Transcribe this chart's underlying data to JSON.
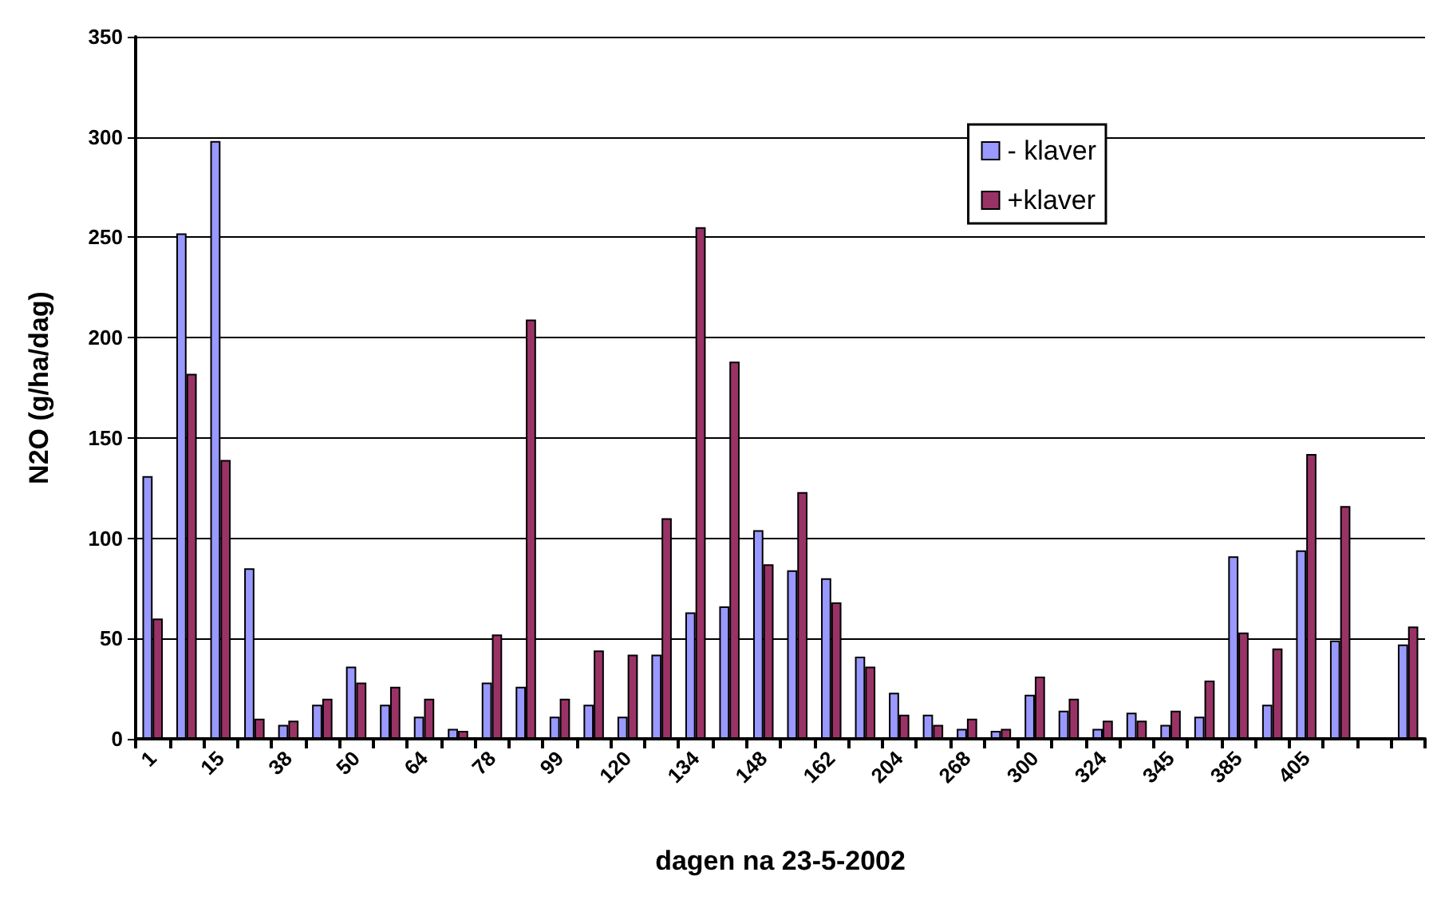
{
  "chart_data": {
    "type": "bar",
    "xlabel": "dagen na 23-5-2002",
    "ylabel": "N2O (g/ha/dag)",
    "categories": [
      "1",
      null,
      "15",
      null,
      "38",
      null,
      "50",
      null,
      "64",
      null,
      "78",
      null,
      "99",
      null,
      "120",
      null,
      "134",
      null,
      "148",
      null,
      "162",
      null,
      "204",
      null,
      "268",
      null,
      "300",
      null,
      "324",
      null,
      "345",
      null,
      "385",
      null,
      "405",
      null,
      null,
      null
    ],
    "series": [
      {
        "name": "- klaver",
        "color": "#9999ff",
        "values": [
          131,
          252,
          298,
          85,
          7,
          17,
          36,
          17,
          11,
          5,
          28,
          26,
          11,
          17,
          11,
          42,
          63,
          66,
          104,
          84,
          80,
          41,
          23,
          12,
          5,
          4,
          22,
          14,
          5,
          13,
          7,
          11,
          91,
          17,
          94,
          49,
          null,
          47
        ]
      },
      {
        "name": "+klaver",
        "color": "#993366",
        "values": [
          60,
          182,
          139,
          10,
          9,
          20,
          28,
          26,
          20,
          4,
          52,
          209,
          20,
          44,
          42,
          110,
          255,
          188,
          87,
          123,
          68,
          36,
          12,
          7,
          10,
          5,
          31,
          20,
          9,
          9,
          14,
          29,
          53,
          45,
          142,
          116,
          null,
          56
        ]
      }
    ],
    "ylim": [
      0,
      350
    ],
    "yticks": [
      0,
      50,
      100,
      150,
      200,
      250,
      300,
      350
    ],
    "grid": "y",
    "legend": "top right"
  }
}
